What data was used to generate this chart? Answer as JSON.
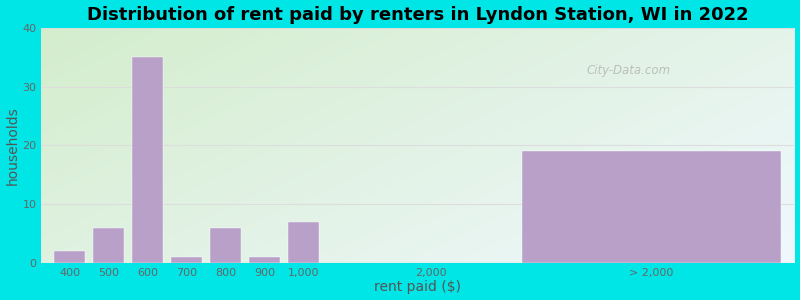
{
  "title": "Distribution of rent paid by renters in Lyndon Station, WI in 2022",
  "xlabel": "rent paid ($)",
  "ylabel": "households",
  "bar_color": "#b8a0c8",
  "background_outer": "#00e5e5",
  "ylim": [
    0,
    40
  ],
  "yticks": [
    0,
    10,
    20,
    30,
    40
  ],
  "values": [
    2,
    6,
    35,
    1,
    6,
    1,
    7,
    19
  ],
  "bar_lefts": [
    0.0,
    1.5,
    3.0,
    4.5,
    6.0,
    7.5,
    9.0,
    18.0
  ],
  "bar_widths": [
    1.2,
    1.2,
    1.2,
    1.2,
    1.2,
    1.2,
    1.2,
    10.0
  ],
  "xtick_positions": [
    0.6,
    2.1,
    3.6,
    5.1,
    6.6,
    8.1,
    9.6,
    14.5,
    23.0
  ],
  "xtick_labels": [
    "400",
    "500",
    "600",
    "700",
    "800",
    "900",
    "1,000",
    "2,000",
    "> 2,000"
  ],
  "xlim": [
    -0.5,
    28.5
  ],
  "grid_color": "#dddddd",
  "title_fontsize": 13,
  "axis_label_fontsize": 10,
  "tick_fontsize": 8,
  "watermark": "City-Data.com",
  "bg_colors_lr": [
    "#d8ecd0",
    "#f5f5f5"
  ],
  "bg_colors_tb": [
    "#e0f0e0",
    "#cce8e8"
  ]
}
